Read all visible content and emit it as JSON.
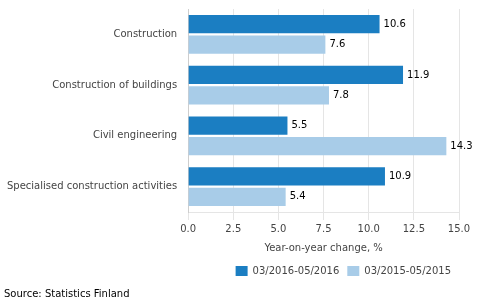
{
  "chart_data": {
    "type": "bar",
    "orientation": "horizontal",
    "categories": [
      "Construction",
      "Construction of buildings",
      "Civil engineering",
      "Specialised construction activities"
    ],
    "series": [
      {
        "name": "03/2016-05/2016",
        "color": "#1B7EC2",
        "values": [
          10.6,
          11.9,
          5.5,
          10.9
        ]
      },
      {
        "name": "03/2015-05/2015",
        "color": "#A8CCE8",
        "values": [
          7.6,
          7.8,
          14.3,
          5.4
        ]
      }
    ],
    "xlabel": "Year-on-year change, %",
    "xlim": [
      0,
      15.0
    ],
    "xticks": [
      {
        "value": 0,
        "label": "0.0"
      },
      2.5,
      {
        "value": 5,
        "label": "5.0"
      },
      7.5,
      {
        "value": 10,
        "label": "10.0"
      },
      12.5,
      {
        "value": 15,
        "label": "15.0"
      }
    ],
    "grid": true,
    "legend": "lower right",
    "data_labels": true,
    "annotations": [
      "Source: Statistics Finland"
    ]
  }
}
